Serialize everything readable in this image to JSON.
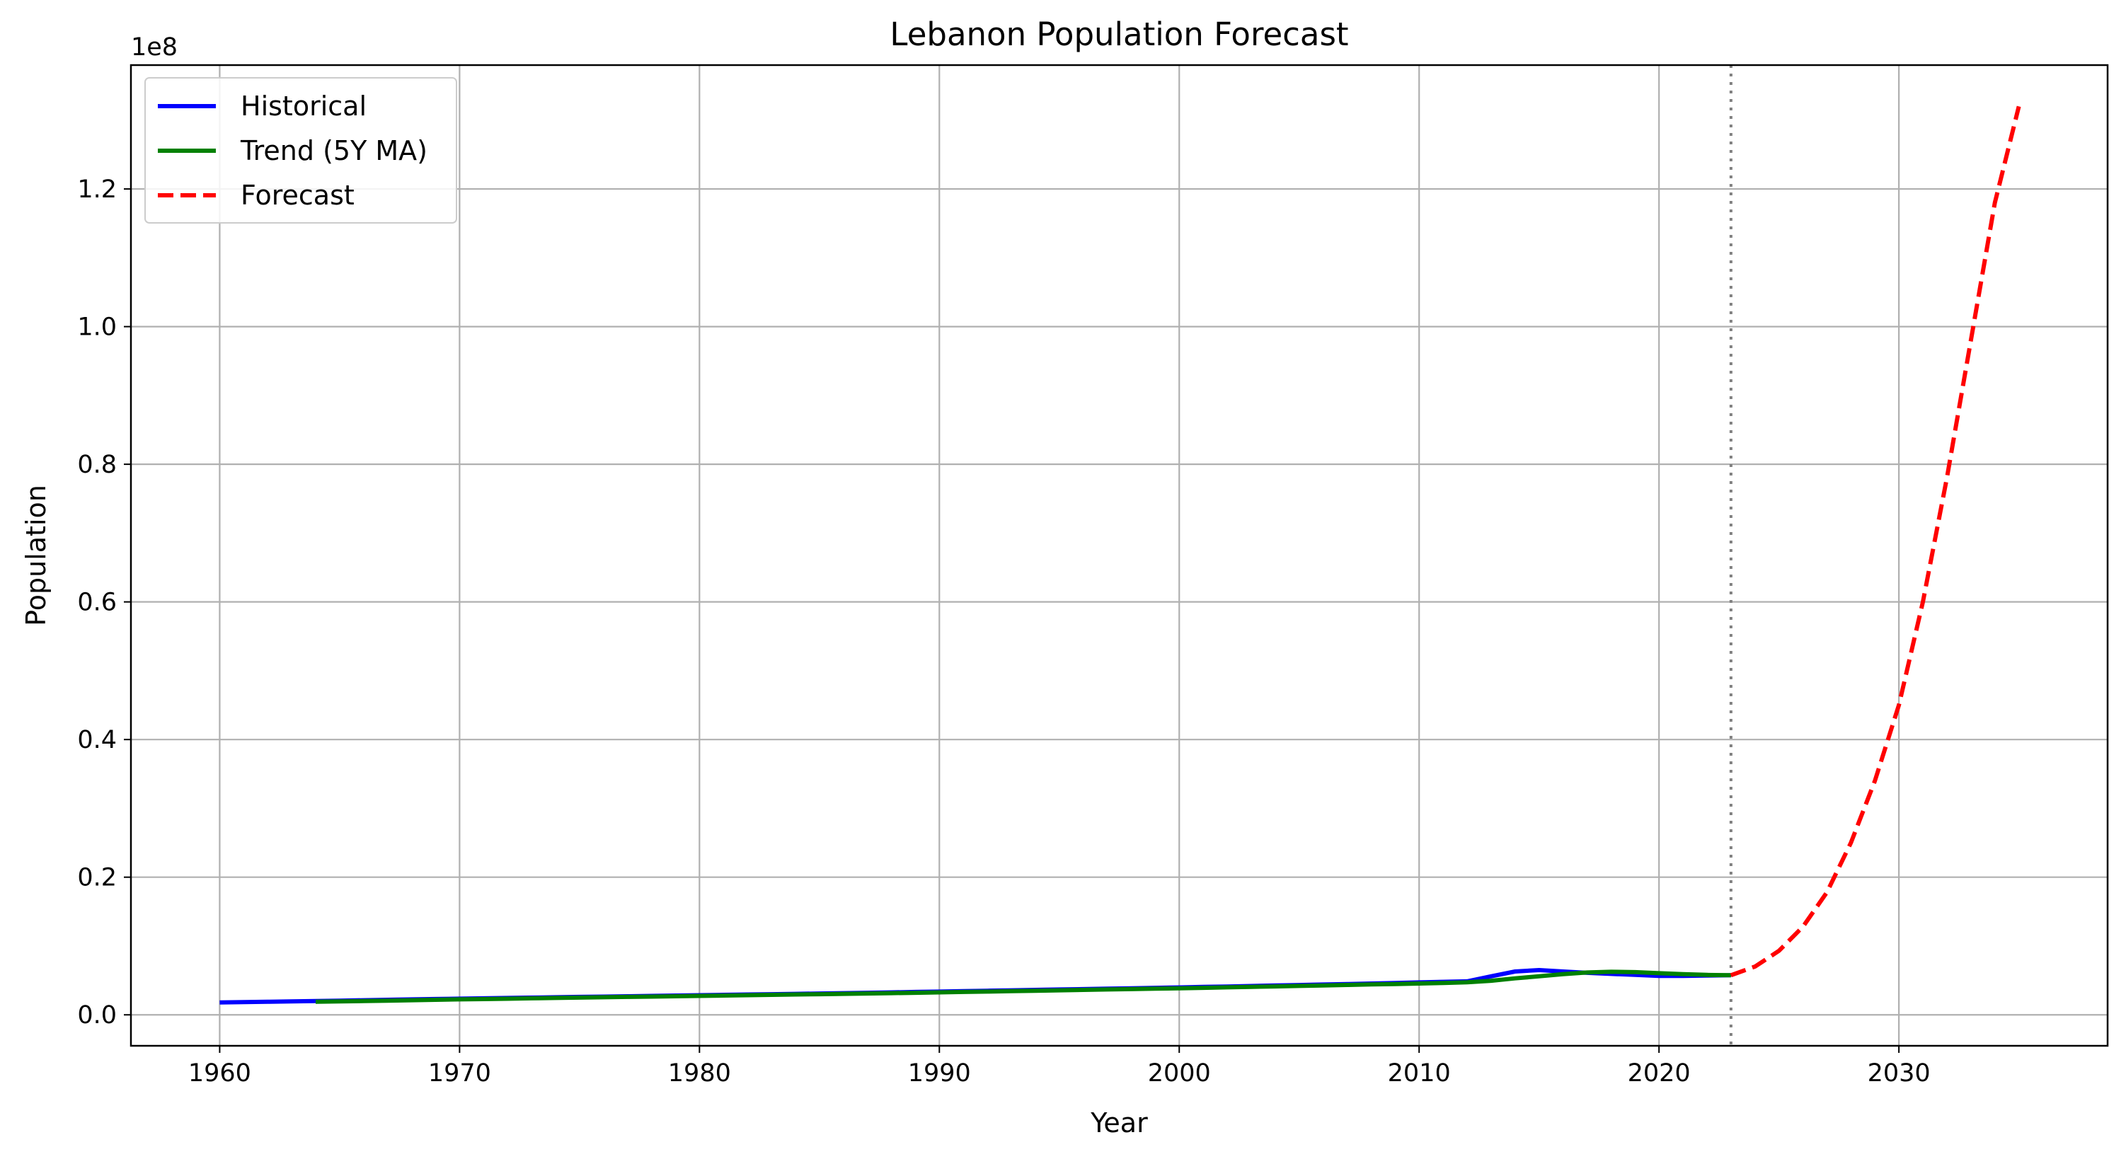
{
  "chart_data": {
    "type": "line",
    "title": "Lebanon Population Forecast",
    "xlabel": "Year",
    "ylabel": "Population",
    "y_offset_text": "1e8",
    "y_scale": 100000000,
    "xlim": [
      1956.3,
      2038.7
    ],
    "ylim": [
      -4500000,
      138000000
    ],
    "grid": true,
    "legend_position": "upper left",
    "x_ticks": [
      1960,
      1970,
      1980,
      1990,
      2000,
      2010,
      2020,
      2030
    ],
    "y_ticks": [
      0.0,
      0.2,
      0.4,
      0.6,
      0.8,
      1.0,
      1.2
    ],
    "y_tick_labels": [
      "0.0",
      "0.2",
      "0.4",
      "0.6",
      "0.8",
      "1.0",
      "1.2"
    ],
    "forecast_start_marker": 2023,
    "series": [
      {
        "name": "Historical",
        "color": "#0000ff",
        "style": "solid",
        "x": [
          1960,
          1961,
          1962,
          1963,
          1964,
          1965,
          1966,
          1967,
          1968,
          1969,
          1970,
          1971,
          1972,
          1973,
          1974,
          1975,
          1976,
          1977,
          1978,
          1979,
          1980,
          1981,
          1982,
          1983,
          1984,
          1985,
          1986,
          1987,
          1988,
          1989,
          1990,
          1991,
          1992,
          1993,
          1994,
          1995,
          1996,
          1997,
          1998,
          1999,
          2000,
          2001,
          2002,
          2003,
          2004,
          2005,
          2006,
          2007,
          2008,
          2009,
          2010,
          2011,
          2012,
          2013,
          2014,
          2015,
          2016,
          2017,
          2018,
          2019,
          2020,
          2021,
          2022,
          2023
        ],
        "y": [
          1800000,
          1850000,
          1900000,
          1950000,
          2000000,
          2060000,
          2120000,
          2180000,
          2240000,
          2300000,
          2350000,
          2400000,
          2450000,
          2500000,
          2550000,
          2600000,
          2650000,
          2700000,
          2750000,
          2800000,
          2850000,
          2900000,
          2950000,
          3000000,
          3050000,
          3100000,
          3150000,
          3200000,
          3260000,
          3320000,
          3380000,
          3440000,
          3500000,
          3560000,
          3620000,
          3680000,
          3740000,
          3800000,
          3860000,
          3920000,
          3980000,
          4050000,
          4120000,
          4190000,
          4260000,
          4330000,
          4400000,
          4470000,
          4550000,
          4630000,
          4710000,
          4790000,
          4870000,
          5600000,
          6300000,
          6500000,
          6300000,
          6100000,
          5950000,
          5800000,
          5650000,
          5650000,
          5700000,
          5750000
        ]
      },
      {
        "name": "Trend (5Y MA)",
        "color": "#008000",
        "style": "solid",
        "x": [
          1964,
          1965,
          1966,
          1967,
          1968,
          1969,
          1970,
          1971,
          1972,
          1973,
          1974,
          1975,
          1976,
          1977,
          1978,
          1979,
          1980,
          1981,
          1982,
          1983,
          1984,
          1985,
          1986,
          1987,
          1988,
          1989,
          1990,
          1991,
          1992,
          1993,
          1994,
          1995,
          1996,
          1997,
          1998,
          1999,
          2000,
          2001,
          2002,
          2003,
          2004,
          2005,
          2006,
          2007,
          2008,
          2009,
          2010,
          2011,
          2012,
          2013,
          2014,
          2015,
          2016,
          2017,
          2018,
          2019,
          2020,
          2021,
          2022,
          2023
        ],
        "y": [
          1900000,
          1950000,
          2000000,
          2060000,
          2120000,
          2180000,
          2240000,
          2290000,
          2340000,
          2400000,
          2450000,
          2500000,
          2550000,
          2600000,
          2650000,
          2700000,
          2750000,
          2800000,
          2850000,
          2900000,
          2950000,
          3000000,
          3050000,
          3100000,
          3150000,
          3200000,
          3260000,
          3320000,
          3380000,
          3440000,
          3500000,
          3560000,
          3620000,
          3680000,
          3740000,
          3800000,
          3860000,
          3920000,
          3990000,
          4060000,
          4130000,
          4200000,
          4270000,
          4340000,
          4410000,
          4480000,
          4550000,
          4630000,
          4720000,
          4950000,
          5300000,
          5600000,
          5900000,
          6150000,
          6250000,
          6200000,
          6050000,
          5900000,
          5800000,
          5750000
        ]
      },
      {
        "name": "Forecast",
        "color": "#ff0000",
        "style": "dashed",
        "x": [
          2023,
          2024,
          2025,
          2026,
          2027,
          2028,
          2029,
          2030,
          2031,
          2032,
          2033,
          2034,
          2035
        ],
        "y": [
          5750000,
          7000000,
          9300000,
          12800000,
          17800000,
          25000000,
          34000000,
          45000000,
          60000000,
          78000000,
          98000000,
          118000000,
          132000000
        ]
      }
    ]
  }
}
